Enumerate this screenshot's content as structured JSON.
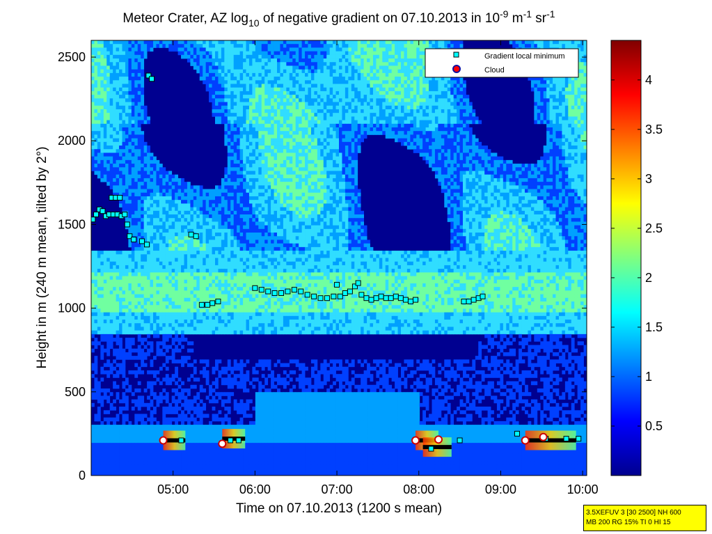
{
  "chart_data": {
    "type": "heatmap",
    "title": {
      "prefix": "Meteor Crater, AZ log",
      "prefix_sub": "10",
      "middle": " of negative gradient on 07.10.2013 in 10",
      "sup1": "-9",
      "mid2": " m",
      "sup2": "-1",
      "mid3": " sr",
      "sup3": "-1"
    },
    "xlabel": "Time on 07.10.2013 (1200 s mean)",
    "ylabel": "Height in m (240 m mean, tilted by 2°)",
    "x_range_hours": [
      4.0,
      10.05
    ],
    "x_ticks": [
      {
        "label": "05:00",
        "value": 5
      },
      {
        "label": "06:00",
        "value": 6
      },
      {
        "label": "07:00",
        "value": 7
      },
      {
        "label": "08:00",
        "value": 8
      },
      {
        "label": "09:00",
        "value": 9
      },
      {
        "label": "10:00",
        "value": 10
      }
    ],
    "ylim": [
      0,
      2600
    ],
    "y_ticks": [
      0,
      500,
      1000,
      1500,
      2000,
      2500
    ],
    "colorbar": {
      "range": [
        0,
        4.4
      ],
      "ticks": [
        "0.5",
        "1",
        "1.5",
        "2",
        "2.5",
        "3",
        "3.5",
        "4"
      ],
      "tick_values": [
        0.5,
        1,
        1.5,
        2,
        2.5,
        3,
        3.5,
        4
      ],
      "colormap": "jet"
    },
    "legend": {
      "placement": "top-right",
      "entries": [
        {
          "label": "Gradient local minimum",
          "marker": "square",
          "color": "#00ffff"
        },
        {
          "label": "Cloud",
          "marker": "circle",
          "color": "#ff0000"
        }
      ]
    },
    "gradient_local_minimum": [
      [
        4.02,
        1530
      ],
      [
        4.06,
        1560
      ],
      [
        4.1,
        1590
      ],
      [
        4.14,
        1580
      ],
      [
        4.18,
        1550
      ],
      [
        4.22,
        1560
      ],
      [
        4.27,
        1560
      ],
      [
        4.32,
        1560
      ],
      [
        4.37,
        1550
      ],
      [
        4.41,
        1560
      ],
      [
        4.44,
        1500
      ],
      [
        4.25,
        1660
      ],
      [
        4.3,
        1660
      ],
      [
        4.35,
        1660
      ],
      [
        4.47,
        1430
      ],
      [
        4.52,
        1410
      ],
      [
        4.62,
        1400
      ],
      [
        4.68,
        1380
      ],
      [
        4.7,
        2390
      ],
      [
        4.74,
        2370
      ],
      [
        5.22,
        1440
      ],
      [
        5.28,
        1430
      ],
      [
        5.35,
        1020
      ],
      [
        5.42,
        1020
      ],
      [
        5.48,
        1030
      ],
      [
        5.55,
        1040
      ],
      [
        6.0,
        1120
      ],
      [
        6.08,
        1110
      ],
      [
        6.16,
        1100
      ],
      [
        6.24,
        1090
      ],
      [
        6.32,
        1090
      ],
      [
        6.4,
        1100
      ],
      [
        6.48,
        1110
      ],
      [
        6.56,
        1100
      ],
      [
        6.64,
        1080
      ],
      [
        6.72,
        1070
      ],
      [
        6.8,
        1060
      ],
      [
        6.88,
        1060
      ],
      [
        6.96,
        1070
      ],
      [
        7.0,
        1140
      ],
      [
        7.04,
        1070
      ],
      [
        7.1,
        1090
      ],
      [
        7.16,
        1100
      ],
      [
        7.22,
        1130
      ],
      [
        7.26,
        1150
      ],
      [
        7.3,
        1080
      ],
      [
        7.36,
        1060
      ],
      [
        7.42,
        1050
      ],
      [
        7.48,
        1060
      ],
      [
        7.54,
        1070
      ],
      [
        7.6,
        1060
      ],
      [
        7.66,
        1060
      ],
      [
        7.72,
        1070
      ],
      [
        7.78,
        1060
      ],
      [
        7.84,
        1050
      ],
      [
        7.9,
        1040
      ],
      [
        7.96,
        1050
      ],
      [
        8.55,
        1040
      ],
      [
        8.61,
        1040
      ],
      [
        8.67,
        1050
      ],
      [
        8.73,
        1060
      ],
      [
        8.78,
        1070
      ],
      [
        5.1,
        210
      ],
      [
        5.7,
        210
      ],
      [
        5.8,
        210
      ],
      [
        8.15,
        160
      ],
      [
        8.5,
        210
      ],
      [
        9.2,
        250
      ],
      [
        9.55,
        220
      ],
      [
        9.8,
        220
      ],
      [
        9.95,
        220
      ]
    ],
    "cloud": [
      [
        4.88,
        210
      ],
      [
        5.6,
        190
      ],
      [
        7.96,
        210
      ],
      [
        8.24,
        215
      ],
      [
        9.3,
        210
      ],
      [
        9.52,
        230
      ]
    ],
    "cloud_bars": [
      [
        4.88,
        5.15,
        210
      ],
      [
        5.6,
        5.88,
        220
      ],
      [
        7.96,
        8.24,
        210
      ],
      [
        8.05,
        8.4,
        170
      ],
      [
        9.3,
        9.92,
        210
      ]
    ],
    "field_levels": {
      "background": "#000090",
      "haze": "#0040ff",
      "moderate": "#00a0ff",
      "strong": "#30ddff",
      "bright": "#70ffa0"
    }
  },
  "info_box": {
    "line1": "3.5XEFUV 3 [30 2500] NH 600",
    "line2": "MB 200 RG 15% TI 0 HI 15"
  }
}
